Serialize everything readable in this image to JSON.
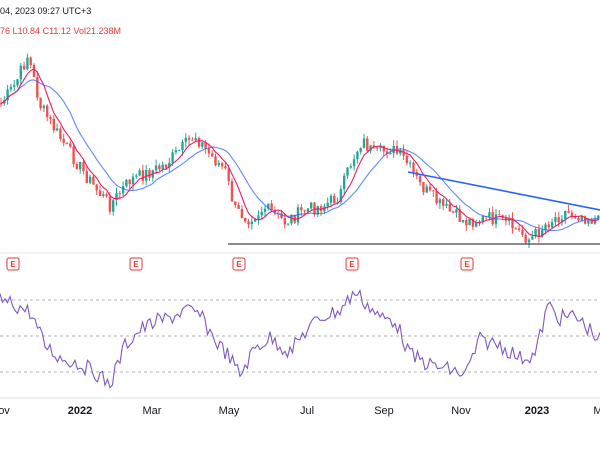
{
  "header": {
    "line1": "04, 2023 09:27 UTC+3",
    "open_tail": "76",
    "low": "L10.84",
    "close": "C11.12",
    "volume": "Vol21.238M"
  },
  "colors": {
    "up": "#26a69a",
    "down": "#ef5350",
    "ma_fast": "#e91e63",
    "ma_slow": "#2962ff",
    "trendline": "#2962ff",
    "rsi": "#7e57c2",
    "earnings": "#e53935"
  },
  "chart_data": {
    "type": "candlestick",
    "x_axis_ticks": [
      "ov",
      "2022",
      "Mar",
      "May",
      "Jul",
      "Sep",
      "Nov",
      "2023",
      "M"
    ],
    "earnings_marker_label": "E",
    "earnings_marker_count": 5,
    "series": [
      {
        "name": "price",
        "kind": "candles"
      },
      {
        "name": "ma-fast",
        "kind": "line"
      },
      {
        "name": "ma-slow",
        "kind": "line"
      },
      {
        "name": "rsi",
        "kind": "oscillator"
      }
    ],
    "rsi_guides": [
      70,
      50,
      30
    ],
    "indicator": "RSI"
  }
}
